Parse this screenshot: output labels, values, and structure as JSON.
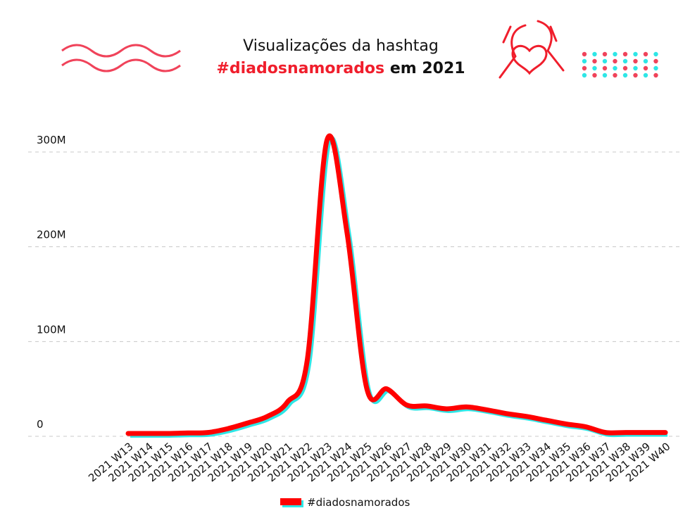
{
  "chart_data": {
    "type": "line",
    "title": "Visualizações da hashtag",
    "subtitle_highlight": "#diadosnamorados",
    "subtitle_rest": "em 2021",
    "categories": [
      "2021 W13",
      "2021 W14",
      "2021 W15",
      "2021 W16",
      "2021 W17",
      "2021 W18",
      "2021 W19",
      "2021 W20",
      "2021 W21",
      "2021 W22",
      "2021 W23",
      "2021 W24",
      "2021 W25",
      "2021 W26",
      "2021 W27",
      "2021 W28",
      "2021 W29",
      "2021 W30",
      "2021 W31",
      "2021 W32",
      "2021 W33",
      "2021 W34",
      "2021 W35",
      "2021 W36",
      "2021 W37",
      "2021 W38",
      "2021 W39",
      "2021 W40"
    ],
    "series": [
      {
        "name": "#diadosnamorados",
        "color": "#ff0000",
        "shadow_color": "#2ee6e6",
        "values": [
          3000000,
          3000000,
          3000000,
          3500000,
          4000000,
          8000000,
          14000000,
          21000000,
          36000000,
          80000000,
          313000000,
          215000000,
          50000000,
          50000000,
          33000000,
          32000000,
          29000000,
          31000000,
          28000000,
          24000000,
          21000000,
          17000000,
          13000000,
          10000000,
          4000000,
          4000000,
          4000000,
          4000000
        ]
      }
    ],
    "ylim": [
      0,
      300000000
    ],
    "yticks": [
      0,
      {
        "value": 100000000,
        "label": "100M"
      },
      {
        "value": 200000000,
        "label": "200M"
      },
      {
        "value": 300000000,
        "label": "300M"
      }
    ],
    "grid": true,
    "legend": "bottom"
  }
}
